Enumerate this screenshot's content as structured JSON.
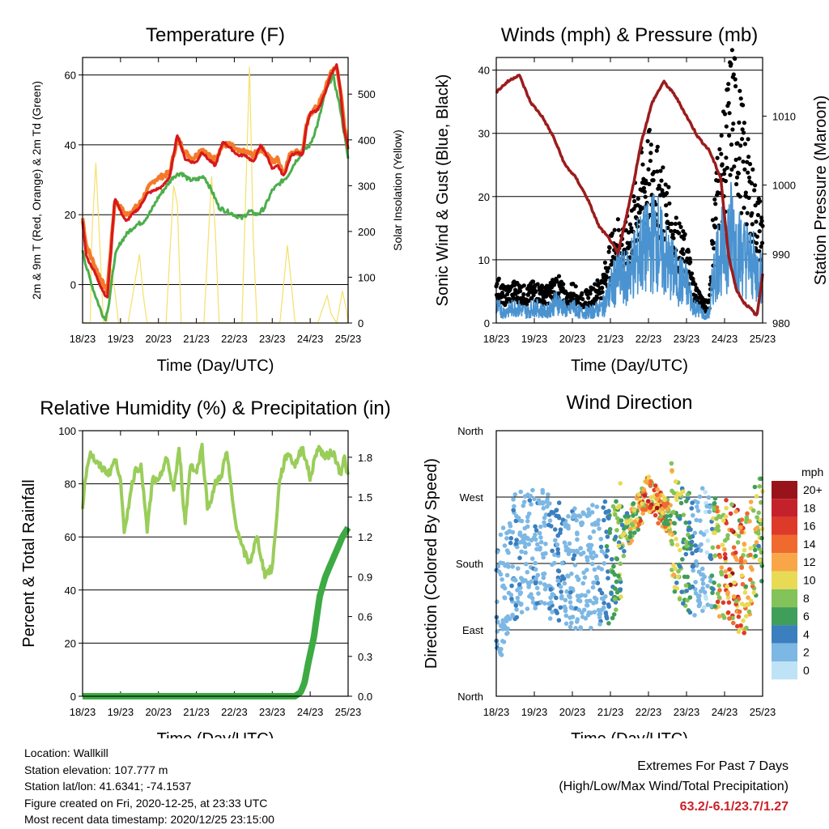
{
  "colors": {
    "t2m": "#d7191c",
    "t9m": "#f47a2a",
    "td": "#4cae4c",
    "solar": "#f5e06a",
    "wind": "#4a93d0",
    "gust": "#000000",
    "pressure": "#9b1c1c",
    "rh": "#9acd5a",
    "precip": "#3daa44",
    "extremes": "#cc2229"
  },
  "time_ticks": [
    "18/23",
    "19/23",
    "20/23",
    "21/23",
    "22/23",
    "23/23",
    "24/23",
    "25/23"
  ],
  "chart_data": [
    {
      "type": "line",
      "title": "Temperature (F)",
      "xlabel": "Time (Day/UTC)",
      "ylabel": "2m & 9m T (Red, Orange) & 2m Td (Green)",
      "y2label": "Solar Insolation (Yellow)",
      "ylim": [
        -11,
        65
      ],
      "y2lim": [
        0,
        580
      ],
      "yticks": [
        0,
        20,
        40,
        60
      ],
      "y2ticks": [
        0,
        100,
        200,
        300,
        400,
        500
      ],
      "grid": "horizontal at 20/40/60 and 0",
      "series": [
        {
          "x": [
            0,
            0.1,
            0.3,
            0.5,
            0.65,
            0.75,
            0.85,
            1.0,
            1.15,
            1.3,
            1.5,
            1.7,
            1.9,
            2.1,
            2.3,
            2.5,
            2.7,
            2.9,
            3.0,
            3.15,
            3.3,
            3.5,
            3.7,
            3.9,
            4.1,
            4.3,
            4.5,
            4.7,
            4.9,
            5.0,
            5.15,
            5.3,
            5.5,
            5.65,
            5.8,
            5.9,
            6.0,
            6.2,
            6.4,
            6.55,
            6.7,
            6.8,
            6.9,
            7.0
          ],
          "values": [
            18,
            8,
            4,
            -1,
            -4,
            10,
            25,
            21,
            18,
            20,
            22,
            26,
            27,
            28,
            31,
            43,
            36,
            35,
            35,
            38,
            36,
            34,
            41,
            39,
            37,
            37,
            35,
            40,
            36,
            33,
            34,
            31,
            37,
            38,
            37,
            45,
            49,
            50,
            55,
            60,
            63,
            55,
            44,
            39
          ]
        },
        {
          "x": [
            0,
            0.1,
            0.3,
            0.5,
            0.65,
            0.75,
            0.85,
            1.0,
            1.15,
            1.3,
            1.5,
            1.7,
            1.9,
            2.1,
            2.3,
            2.5,
            2.7,
            2.9,
            3.0,
            3.15,
            3.3,
            3.5,
            3.7,
            3.9,
            4.1,
            4.3,
            4.5,
            4.7,
            4.9,
            5.0,
            5.15,
            5.3,
            5.5,
            5.65,
            5.8,
            5.9,
            6.0,
            6.2,
            6.4,
            6.55,
            6.7,
            6.8,
            6.9,
            7.0
          ],
          "values": [
            19,
            11,
            6,
            1,
            -2,
            11,
            24,
            22,
            20,
            21,
            23,
            27,
            30,
            31,
            32,
            42,
            38,
            36,
            37,
            39,
            37,
            36,
            40,
            40,
            38,
            38,
            37,
            39,
            37,
            35,
            36,
            32,
            38,
            38,
            38,
            45,
            49,
            51,
            56,
            61,
            62,
            56,
            45,
            40
          ]
        },
        {
          "x": [
            0,
            0.1,
            0.3,
            0.5,
            0.6,
            0.7,
            0.85,
            1.0,
            1.2,
            1.4,
            1.6,
            1.8,
            2.0,
            2.2,
            2.4,
            2.6,
            2.8,
            3.0,
            3.2,
            3.4,
            3.6,
            3.8,
            4.0,
            4.2,
            4.4,
            4.6,
            4.8,
            5.0,
            5.2,
            5.4,
            5.6,
            5.8,
            6.0,
            6.2,
            6.4,
            6.6,
            6.8,
            7.0
          ],
          "values": [
            10,
            5,
            -2,
            -8,
            -10,
            -5,
            8,
            12,
            15,
            17,
            18,
            21,
            25,
            28,
            31,
            32,
            30,
            30,
            31,
            27,
            22,
            21,
            20,
            19,
            21,
            20,
            22,
            27,
            29,
            31,
            35,
            38,
            40,
            46,
            55,
            60,
            50,
            36
          ]
        },
        {
          "x": [
            0,
            0.2,
            0.25,
            0.35,
            0.45,
            0.55,
            0.65,
            0.75,
            0.85,
            0.95,
            1.2,
            1.4,
            1.5,
            1.6,
            1.7,
            2.2,
            2.4,
            2.5,
            2.6,
            3.2,
            3.4,
            3.5,
            3.6,
            4.2,
            4.4,
            4.5,
            4.6,
            5.2,
            5.4,
            5.5,
            5.6,
            6.2,
            6.45,
            6.55,
            6.7,
            6.85,
            6.95,
            7.0
          ],
          "values": [
            0,
            0,
            200,
            350,
            180,
            0,
            0,
            120,
            70,
            0,
            0,
            100,
            150,
            60,
            0,
            0,
            300,
            260,
            0,
            0,
            320,
            200,
            0,
            0,
            560,
            180,
            0,
            0,
            170,
            90,
            0,
            0,
            60,
            20,
            0,
            70,
            30,
            0
          ]
        }
      ]
    },
    {
      "type": "line",
      "title": "Winds (mph) & Pressure (mb)",
      "xlabel": "Time (Day/UTC)",
      "ylabel": "Sonic Wind & Gust (Blue, Black)",
      "y2label": "Station Pressure (Maroon)",
      "ylim": [
        0,
        42
      ],
      "y2lim": [
        980,
        1018.5
      ],
      "yticks": [
        0,
        10,
        20,
        30,
        40
      ],
      "y2ticks": [
        980,
        990,
        1000,
        1010
      ],
      "series": [
        {
          "x": [
            0,
            0.2,
            0.5,
            0.8,
            1.0,
            1.3,
            1.6,
            1.9,
            2.0,
            2.2,
            2.5,
            2.8,
            3.0,
            3.2,
            3.4,
            3.6,
            3.8,
            4.0,
            4.2,
            4.4,
            4.6,
            4.8,
            5.0,
            5.2,
            5.4,
            5.5,
            5.6,
            5.7,
            5.8,
            6.0,
            6.2,
            6.4,
            6.6,
            6.8,
            7.0
          ],
          "values": [
            3,
            2,
            3,
            2,
            3,
            2,
            4,
            2,
            3,
            2,
            2,
            3,
            6,
            9,
            8,
            11,
            13,
            14,
            16,
            12,
            10,
            8,
            7,
            3,
            2,
            1,
            2,
            8,
            12,
            14,
            17,
            13,
            12,
            10,
            8
          ]
        },
        {
          "x": [
            0,
            0.2,
            0.5,
            0.8,
            1.0,
            1.3,
            1.6,
            1.9,
            2.0,
            2.2,
            2.5,
            2.8,
            3.0,
            3.2,
            3.4,
            3.6,
            3.8,
            4.0,
            4.2,
            4.4,
            4.6,
            4.8,
            5.0,
            5.2,
            5.4,
            5.5,
            5.6,
            5.7,
            5.8,
            6.0,
            6.2,
            6.4,
            6.6,
            6.8,
            7.0
          ],
          "values": [
            7,
            5,
            6,
            5,
            6,
            5,
            7,
            4,
            6,
            4,
            5,
            7,
            12,
            15,
            14,
            18,
            24,
            27,
            25,
            22,
            17,
            14,
            12,
            6,
            4,
            3,
            4,
            16,
            24,
            30,
            40,
            33,
            26,
            20,
            16
          ]
        },
        {
          "x": [
            0,
            0.3,
            0.6,
            0.9,
            1.2,
            1.5,
            1.8,
            2.1,
            2.4,
            2.7,
            3.0,
            3.2,
            3.4,
            3.6,
            3.8,
            4.1,
            4.4,
            4.7,
            5.0,
            5.3,
            5.6,
            5.9,
            6.1,
            6.3,
            6.5,
            6.7,
            6.85,
            7.0
          ],
          "values": [
            1013.5,
            1015,
            1016,
            1012,
            1010,
            1007,
            1003,
            1001,
            998,
            994,
            992,
            990,
            995,
            1000,
            1006,
            1012,
            1015,
            1013,
            1010,
            1007,
            1005,
            1001,
            990,
            985,
            983,
            982,
            981,
            987
          ]
        }
      ]
    },
    {
      "type": "line",
      "title": "Relative Humidity (%) & Precipitation (in)",
      "xlabel": "Time (Day/UTC)",
      "ylabel": "Percent & Total Rainfall",
      "ylim": [
        0,
        100
      ],
      "y2lim": [
        0,
        2
      ],
      "yticks": [
        0,
        20,
        40,
        60,
        80,
        100
      ],
      "y2ticks": [
        "0.0",
        "0.3",
        "0.6",
        "0.9",
        "1.2",
        "1.5",
        "1.8"
      ],
      "series": [
        {
          "x": [
            0,
            0.1,
            0.2,
            0.35,
            0.5,
            0.7,
            0.85,
            1.0,
            1.1,
            1.25,
            1.4,
            1.55,
            1.7,
            1.85,
            2.0,
            2.2,
            2.4,
            2.55,
            2.7,
            2.85,
            3.0,
            3.15,
            3.3,
            3.5,
            3.65,
            3.8,
            4.0,
            4.2,
            4.4,
            4.6,
            4.8,
            5.0,
            5.2,
            5.4,
            5.6,
            5.8,
            6.0,
            6.2,
            6.4,
            6.6,
            6.8,
            6.9,
            7.0
          ],
          "values": [
            72,
            85,
            92,
            88,
            86,
            84,
            89,
            83,
            60,
            76,
            86,
            86,
            62,
            82,
            80,
            90,
            78,
            93,
            65,
            88,
            84,
            94,
            70,
            80,
            83,
            92,
            68,
            56,
            50,
            60,
            46,
            48,
            82,
            92,
            87,
            94,
            82,
            94,
            90,
            92,
            84,
            90,
            82
          ]
        },
        {
          "x": [
            0,
            1,
            2,
            3,
            4,
            5,
            5.6,
            5.75,
            5.85,
            5.95,
            6.1,
            6.25,
            6.4,
            6.55,
            6.7,
            6.85,
            7.0
          ],
          "values": [
            0,
            0,
            0,
            0,
            0,
            0,
            0,
            0.03,
            0.1,
            0.25,
            0.45,
            0.75,
            0.9,
            1.0,
            1.1,
            1.2,
            1.27
          ]
        }
      ]
    },
    {
      "type": "scatter",
      "title": "Wind Direction",
      "xlabel": "Time (Day/UTC)",
      "ylabel": "Direction (Colored By Speed)",
      "yticks": [
        "North",
        "East",
        "South",
        "West",
        "North"
      ],
      "colorbar_title": "mph",
      "colorbar_labels": [
        "20+",
        "18",
        "16",
        "14",
        "12",
        "10",
        "8",
        "6",
        "4",
        "2",
        "0"
      ],
      "colorbar_colors": [
        "#99141a",
        "#c4222a",
        "#de3a2a",
        "#f06a2e",
        "#f8a648",
        "#e9da56",
        "#84c25a",
        "#3f9e5a",
        "#3b7fbf",
        "#7db8e4",
        "#bfe3f6"
      ]
    }
  ],
  "info": {
    "location": "Location: Wallkill",
    "elevation": "Station elevation: 107.777 m",
    "latlon": "Station lat/lon: 41.6341; -74.1537",
    "created": "Figure created on Fri, 2020-12-25, at 23:33 UTC",
    "recent": "Most recent data timestamp: 2020/12/25 23:15:00"
  },
  "extremes": {
    "title": "Extremes For Past 7 Days",
    "subtitle": "(High/Low/Max Wind/Total Precipitation)",
    "values": "63.2/-6.1/23.7/1.27"
  }
}
